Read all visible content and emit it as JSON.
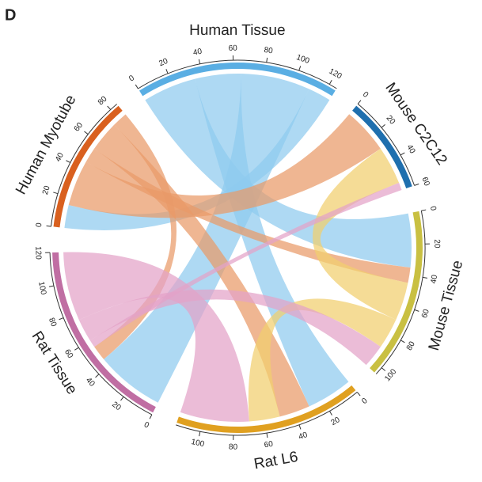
{
  "chart_data": {
    "type": "chord",
    "panel_label": "D",
    "sectors": [
      {
        "name": "Human Tissue",
        "color": "#5aaee3",
        "chord_color": "#8fcaee",
        "ticks": [
          0,
          20,
          40,
          60,
          80,
          100,
          120
        ]
      },
      {
        "name": "Mouse C2C12",
        "color": "#1f6fae",
        "chord_color": "#6fa3cf",
        "ticks": [
          0,
          20,
          40,
          60
        ]
      },
      {
        "name": "Mouse Tissue",
        "color": "#c9c042",
        "chord_color": "#f1cf6e",
        "ticks": [
          0,
          20,
          40,
          60,
          80,
          100
        ]
      },
      {
        "name": "Rat L6",
        "color": "#e0a020",
        "chord_color": "#eeb860",
        "ticks": [
          0,
          20,
          40,
          60,
          80,
          100
        ]
      },
      {
        "name": "Rat Tissue",
        "color": "#c06ea3",
        "chord_color": "#e3a2c8",
        "ticks": [
          0,
          20,
          40,
          60,
          80,
          100,
          120
        ]
      },
      {
        "name": "Human Myotube",
        "color": "#d9601f",
        "chord_color": "#e99a68",
        "ticks": [
          0,
          20,
          40,
          60,
          80
        ]
      }
    ],
    "links": [
      {
        "source": 0,
        "target": 2,
        "value": 35
      },
      {
        "source": 0,
        "target": 3,
        "value": 30
      },
      {
        "source": 0,
        "target": 4,
        "value": 45
      },
      {
        "source": 0,
        "target": 5,
        "value": 15
      },
      {
        "source": 5,
        "target": 1,
        "value": 30
      },
      {
        "source": 5,
        "target": 2,
        "value": 10
      },
      {
        "source": 5,
        "target": 3,
        "value": 20
      },
      {
        "source": 5,
        "target": 4,
        "value": 10
      },
      {
        "source": 2,
        "target": 1,
        "value": 25
      },
      {
        "source": 2,
        "target": 3,
        "value": 20
      },
      {
        "source": 4,
        "target": 1,
        "value": 5
      },
      {
        "source": 4,
        "target": 2,
        "value": 15
      },
      {
        "source": 4,
        "target": 3,
        "value": 45
      }
    ]
  }
}
